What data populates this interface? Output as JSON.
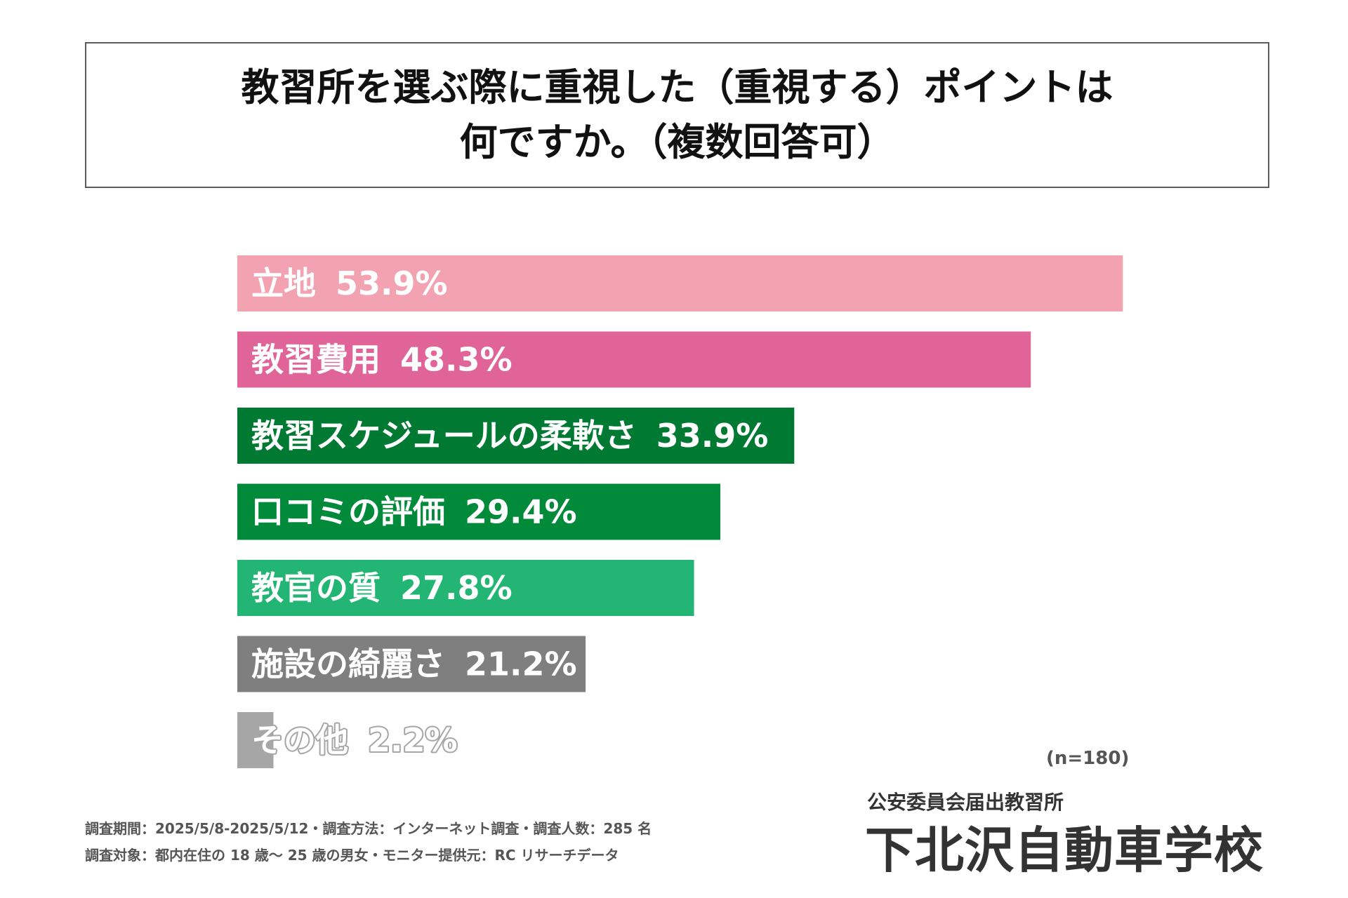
{
  "title": {
    "line1": "教習所を選ぶ際に重視した（重視する）ポイントは",
    "line2": "何ですか。（複数回答可）"
  },
  "chart_data": {
    "type": "bar",
    "orientation": "horizontal",
    "title": "教習所を選ぶ際に重視した（重視する）ポイントは何ですか。（複数回答可）",
    "categories": [
      "立地",
      "教習費用",
      "教習スケジュールの柔軟さ",
      "口コミの評価",
      "教官の質",
      "施設の綺麗さ",
      "その他"
    ],
    "values": [
      53.9,
      48.3,
      33.9,
      29.4,
      27.8,
      21.2,
      2.2
    ],
    "value_labels": [
      "53.9%",
      "48.3%",
      "33.9%",
      "29.4%",
      "27.8%",
      "21.2%",
      "2.2%"
    ],
    "colors": [
      "#f2a2b0",
      "#e06497",
      "#007a33",
      "#008a3a",
      "#22b573",
      "#7f7f7f",
      "#a6a6a6"
    ],
    "label_outline_colors": [
      "#f2a2b0",
      "#e06497",
      "#007a33",
      "#008a3a",
      "#22b573",
      "#7f7f7f",
      "#a6a6a6"
    ],
    "xlim": [
      0,
      60
    ],
    "unit": "%"
  },
  "sample_size": "(n=180)",
  "footnotes": {
    "line1": "調査期間：2025/5/8-2025/5/12・調査方法：インターネット調査・調査人数：285 名",
    "line2": "調査対象：都内在住の 18 歳～ 25 歳の男女・モニター提供元：RC リサーチデータ"
  },
  "school": {
    "subtitle": "公安委員会届出教習所",
    "name": "下北沢自動車学校"
  }
}
